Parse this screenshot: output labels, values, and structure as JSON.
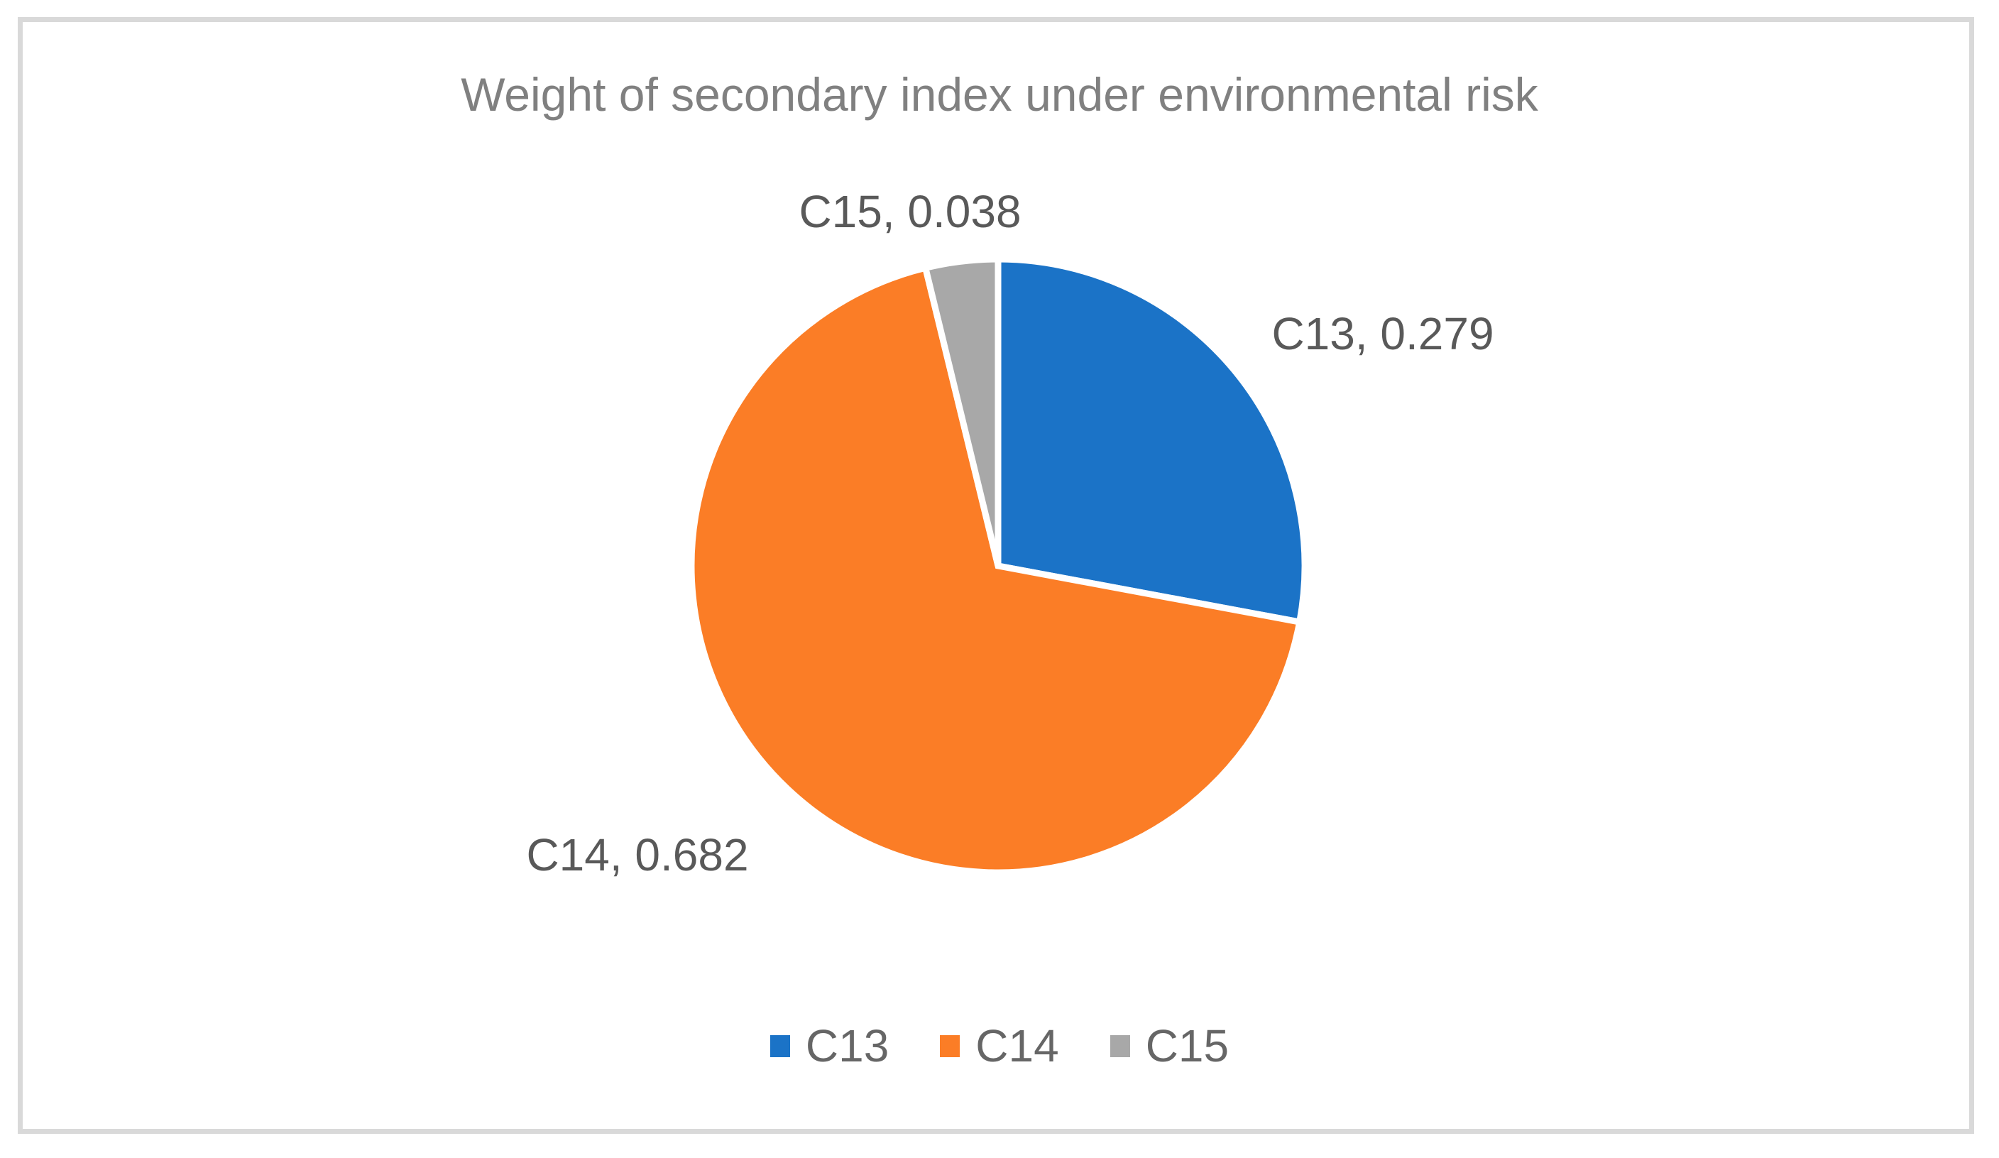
{
  "chart_data": {
    "type": "pie",
    "title": "Weight of secondary index under environmental risk",
    "categories": [
      "C13",
      "C14",
      "C15"
    ],
    "values": [
      0.279,
      0.682,
      0.038
    ],
    "colors": [
      "#1B73C7",
      "#FB7D26",
      "#A8A8A8"
    ],
    "data_labels": [
      "C13, 0.279",
      "C14, 0.682",
      "C15, 0.038"
    ],
    "start_angle_deg": 0,
    "direction": "clockwise",
    "legend_position": "bottom",
    "slice_separator_color": "#FFFFFF",
    "chart_border_color": "#D9D9D9",
    "title_color": "#808080",
    "label_color": "#595959",
    "grid": false
  },
  "labels": {
    "c13": "C13, 0.279",
    "c14": "C14, 0.682",
    "c15": "C15, 0.038"
  },
  "legend": {
    "items": [
      {
        "label": "C13",
        "color": "#1B73C7"
      },
      {
        "label": "C14",
        "color": "#FB7D26"
      },
      {
        "label": "C15",
        "color": "#A8A8A8"
      }
    ]
  }
}
